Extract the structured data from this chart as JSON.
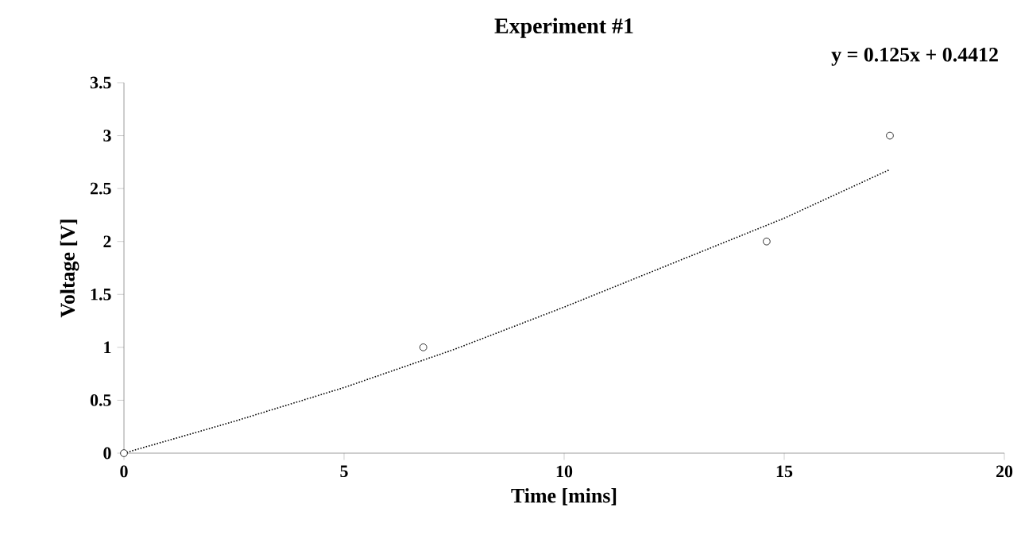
{
  "chart_data": {
    "type": "scatter",
    "title": "Experiment #1",
    "xlabel": "Time [mins]",
    "ylabel": "Voltage  [V]",
    "annotations": [
      "y = 0.125x + 0.4412"
    ],
    "xlim": [
      0,
      20
    ],
    "xticks": [
      0,
      5,
      10,
      15,
      20
    ],
    "ylim": [
      0,
      3.5
    ],
    "yticks": [
      0,
      0.5,
      1,
      1.5,
      2,
      2.5,
      3,
      3.5
    ],
    "grid": false,
    "series": [
      {
        "color": "#000000",
        "marker": "circle",
        "x": [
          0,
          6.8,
          14.6,
          17.4
        ],
        "values": [
          0,
          1,
          2,
          3
        ]
      },
      {
        "type": "line",
        "color": "#000000",
        "marker": "none",
        "line_style": "dotted",
        "x": [
          0,
          2.5,
          5,
          7.5,
          10,
          12.5,
          15,
          17.4
        ],
        "values": [
          0,
          0.3,
          0.62,
          0.98,
          1.38,
          1.8,
          2.22,
          2.68
        ]
      }
    ]
  }
}
